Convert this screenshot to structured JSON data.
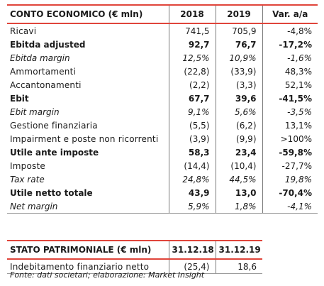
{
  "conto_economico": {
    "headers": [
      "CONTO ECONOMICO (€ mln)",
      "2018",
      "2019",
      "Var. a/a"
    ],
    "rows": [
      {
        "label": "Ricavi",
        "v2018": "741,5",
        "v2019": "705,9",
        "var": "-4,8%",
        "style": "normal"
      },
      {
        "label": "Ebitda adjusted",
        "v2018": "92,7",
        "v2019": "76,7",
        "var": "-17,2%",
        "style": "bold"
      },
      {
        "label": "Ebitda margin",
        "v2018": "12,5%",
        "v2019": "10,9%",
        "var": "-1,6%",
        "style": "italic"
      },
      {
        "label": "Ammortamenti",
        "v2018": "(22,8)",
        "v2019": "(33,9)",
        "var": "48,3%",
        "style": "normal"
      },
      {
        "label": "Accantonamenti",
        "v2018": "(2,2)",
        "v2019": "(3,3)",
        "var": "52,1%",
        "style": "normal"
      },
      {
        "label": "Ebit",
        "v2018": "67,7",
        "v2019": "39,6",
        "var": "-41,5%",
        "style": "bold"
      },
      {
        "label": "Ebit margin",
        "v2018": "9,1%",
        "v2019": "5,6%",
        "var": "-3,5%",
        "style": "italic"
      },
      {
        "label": "Gestione finanziaria",
        "v2018": "(5,5)",
        "v2019": "(6,2)",
        "var": "13,1%",
        "style": "normal"
      },
      {
        "label": "Impairment e poste non ricorrenti",
        "v2018": "(3,9)",
        "v2019": "(9,9)",
        "var": ">100%",
        "style": "normal"
      },
      {
        "label": "Utile ante imposte",
        "v2018": "58,3",
        "v2019": "23,4",
        "var": "-59,8%",
        "style": "bold"
      },
      {
        "label": "Imposte",
        "v2018": "(14,4)",
        "v2019": "(10,4)",
        "var": "-27,7%",
        "style": "normal"
      },
      {
        "label": "Tax rate",
        "v2018": "24,8%",
        "v2019": "44,5%",
        "var": "19,8%",
        "style": "italic"
      },
      {
        "label": "Utile netto totale",
        "v2018": "43,9",
        "v2019": "13,0",
        "var": "-70,4%",
        "style": "bold"
      },
      {
        "label": "Net margin",
        "v2018": "5,9%",
        "v2019": "1,8%",
        "var": "-4,1%",
        "style": "italic"
      }
    ]
  },
  "stato_patrimoniale": {
    "headers": [
      "STATO PATRIMONIALE (€ mln)",
      "31.12.18",
      "31.12.19"
    ],
    "rows": [
      {
        "label": "Indebitamento finanziario netto",
        "v2018": "(25,4)",
        "v2019": "18,6"
      }
    ]
  },
  "source": "Fonte: dati societari; elaborazione: Market Insight",
  "colors": {
    "accent_rule": "#e0453b",
    "divider": "#7a7a7a"
  }
}
